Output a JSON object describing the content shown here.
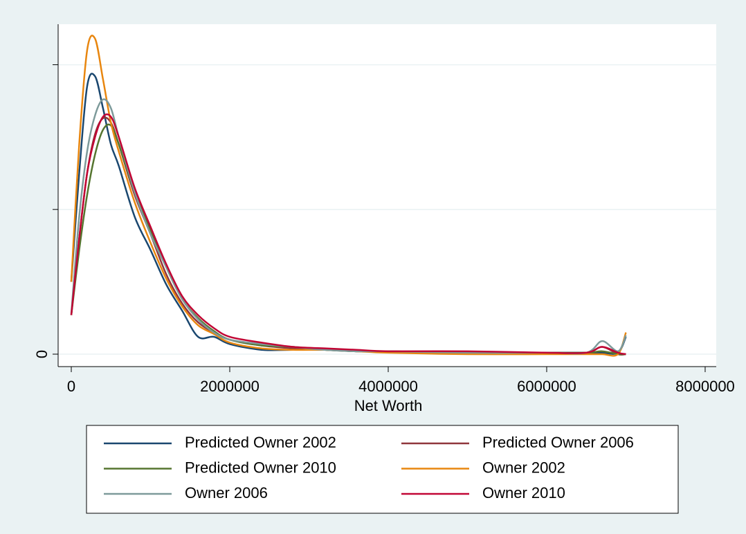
{
  "chart_data": {
    "type": "line",
    "x_label": "Net Worth",
    "x": [
      0,
      100000,
      200000,
      300000,
      400000,
      500000,
      600000,
      800000,
      1000000,
      1200000,
      1400000,
      1600000,
      1800000,
      2000000,
      2400000,
      2800000,
      3200000,
      3600000,
      4000000,
      5000000,
      6000000,
      6500000,
      6700000,
      6900000,
      7000000
    ],
    "series": [
      {
        "name": "Predicted Owner 2002",
        "color": "#1a476f",
        "values": [
          0.5,
          1.25,
          1.85,
          1.92,
          1.7,
          1.45,
          1.3,
          0.95,
          0.72,
          0.48,
          0.3,
          0.12,
          0.12,
          0.07,
          0.03,
          0.03,
          0.03,
          0.02,
          0.02,
          0.01,
          0.01,
          0.01,
          0.01,
          0.01,
          0.12
        ]
      },
      {
        "name": "Predicted Owner 2006",
        "color": "#90353b",
        "values": [
          0.27,
          0.8,
          1.25,
          1.52,
          1.63,
          1.6,
          1.45,
          1.1,
          0.83,
          0.55,
          0.35,
          0.22,
          0.15,
          0.1,
          0.06,
          0.04,
          0.03,
          0.02,
          0.02,
          0.01,
          0.01,
          0.01,
          0.05,
          0,
          0
        ]
      },
      {
        "name": "Predicted Owner 2010",
        "color": "#55752f",
        "values": [
          0.27,
          0.72,
          1.1,
          1.38,
          1.55,
          1.58,
          1.45,
          1.12,
          0.86,
          0.6,
          0.38,
          0.25,
          0.16,
          0.1,
          0.06,
          0.05,
          0.03,
          0.02,
          0.02,
          0.01,
          0.01,
          0.01,
          0.02,
          0,
          0
        ]
      },
      {
        "name": "Owner 2002",
        "color": "#e8860f",
        "values": [
          0.5,
          1.45,
          2.1,
          2.18,
          1.9,
          1.6,
          1.4,
          1.05,
          0.77,
          0.52,
          0.33,
          0.2,
          0.14,
          0.08,
          0.04,
          0.03,
          0.03,
          0.02,
          0.01,
          0,
          0,
          0,
          0,
          0,
          0.15
        ]
      },
      {
        "name": "Owner 2006",
        "color": "#7d9a9a",
        "values": [
          0.28,
          0.95,
          1.4,
          1.65,
          1.76,
          1.7,
          1.5,
          1.12,
          0.83,
          0.6,
          0.38,
          0.24,
          0.15,
          0.1,
          0.07,
          0.05,
          0.03,
          0.02,
          0.02,
          0.01,
          0.01,
          0.01,
          0.09,
          0.02,
          0.13
        ]
      },
      {
        "name": "Owner 2010",
        "color": "#c10534",
        "values": [
          0.27,
          0.8,
          1.25,
          1.5,
          1.64,
          1.64,
          1.5,
          1.15,
          0.88,
          0.62,
          0.4,
          0.27,
          0.18,
          0.12,
          0.08,
          0.05,
          0.04,
          0.03,
          0.02,
          0.02,
          0.01,
          0.01,
          0.05,
          0.01,
          0
        ]
      }
    ],
    "xlim": [
      -166000,
      8140000
    ],
    "xticks": [
      0,
      2000000,
      4000000,
      6000000,
      8000000
    ],
    "ylim": [
      -0.086,
      2.28
    ],
    "yticks": [
      0,
      {
        "value": 1,
        "label": null
      },
      {
        "value": 2,
        "label": null
      }
    ],
    "grid": true,
    "legend_position": "bottom"
  }
}
